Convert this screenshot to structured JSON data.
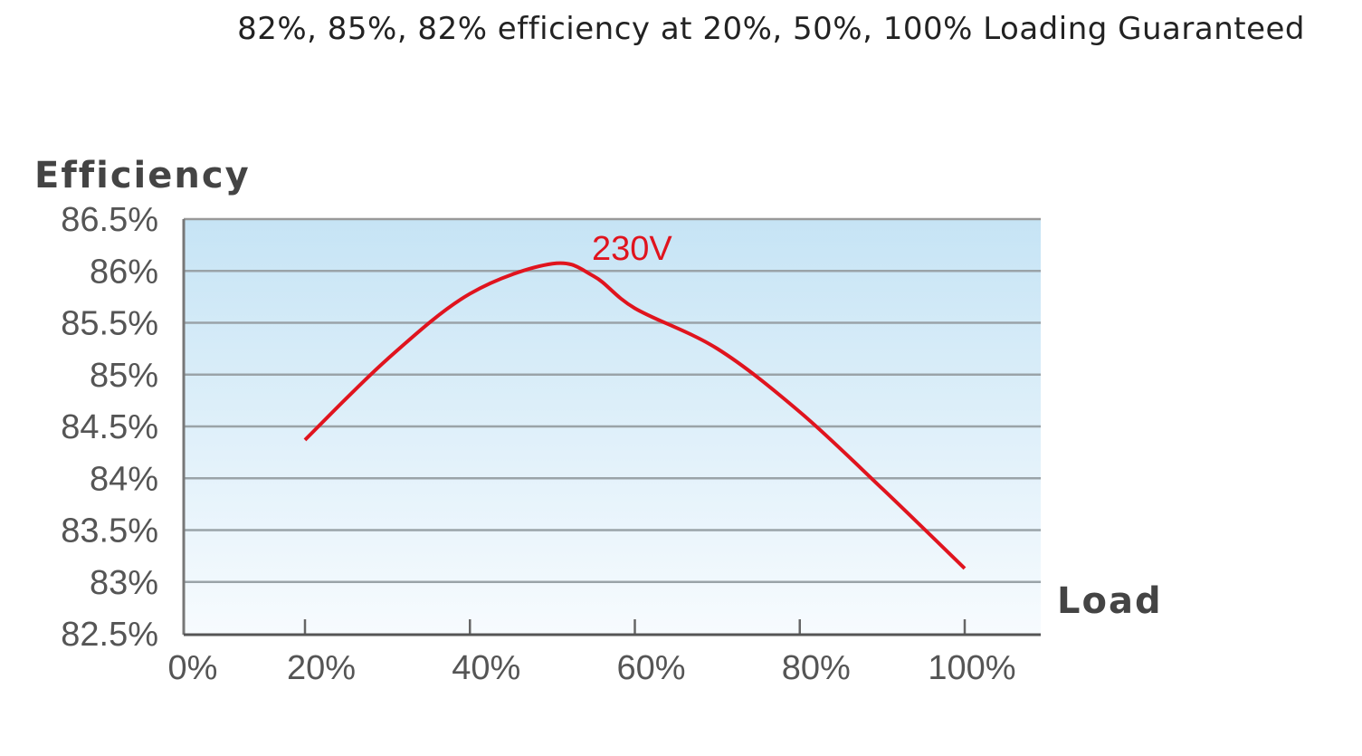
{
  "headline": "82%, 85%, 82% efficiency at 20%, 50%, 100% Loading Guaranteed",
  "chart_data": {
    "type": "line",
    "title": "",
    "ylabel": "Efficiency",
    "xlabel": "Load",
    "ylim": [
      82.5,
      86.5
    ],
    "xlim": [
      0,
      100
    ],
    "yticks": [
      "86.5%",
      "86%",
      "85.5%",
      "85%",
      "84.5%",
      "84%",
      "83.5%",
      "83%",
      "82.5%"
    ],
    "ytick_values": [
      86.5,
      86,
      85.5,
      85,
      84.5,
      84,
      83.5,
      83,
      82.5
    ],
    "xticks": [
      "0%",
      "20%",
      "40%",
      "60%",
      "80%",
      "100%"
    ],
    "xtick_values": [
      0,
      20,
      40,
      60,
      80,
      100
    ],
    "grid": true,
    "series": [
      {
        "name": "230V",
        "color": "#e0141e",
        "x": [
          20,
          30,
          40,
          50,
          55,
          60,
          70,
          80,
          90,
          100
        ],
        "y": [
          84.37,
          85.15,
          85.78,
          86.07,
          85.95,
          85.64,
          85.25,
          84.64,
          83.9,
          83.13
        ]
      }
    ],
    "colors": {
      "grid": "#9aa3a8",
      "bg_top": "#c6e4f5",
      "bg_bottom": "#f7fbfe"
    }
  }
}
